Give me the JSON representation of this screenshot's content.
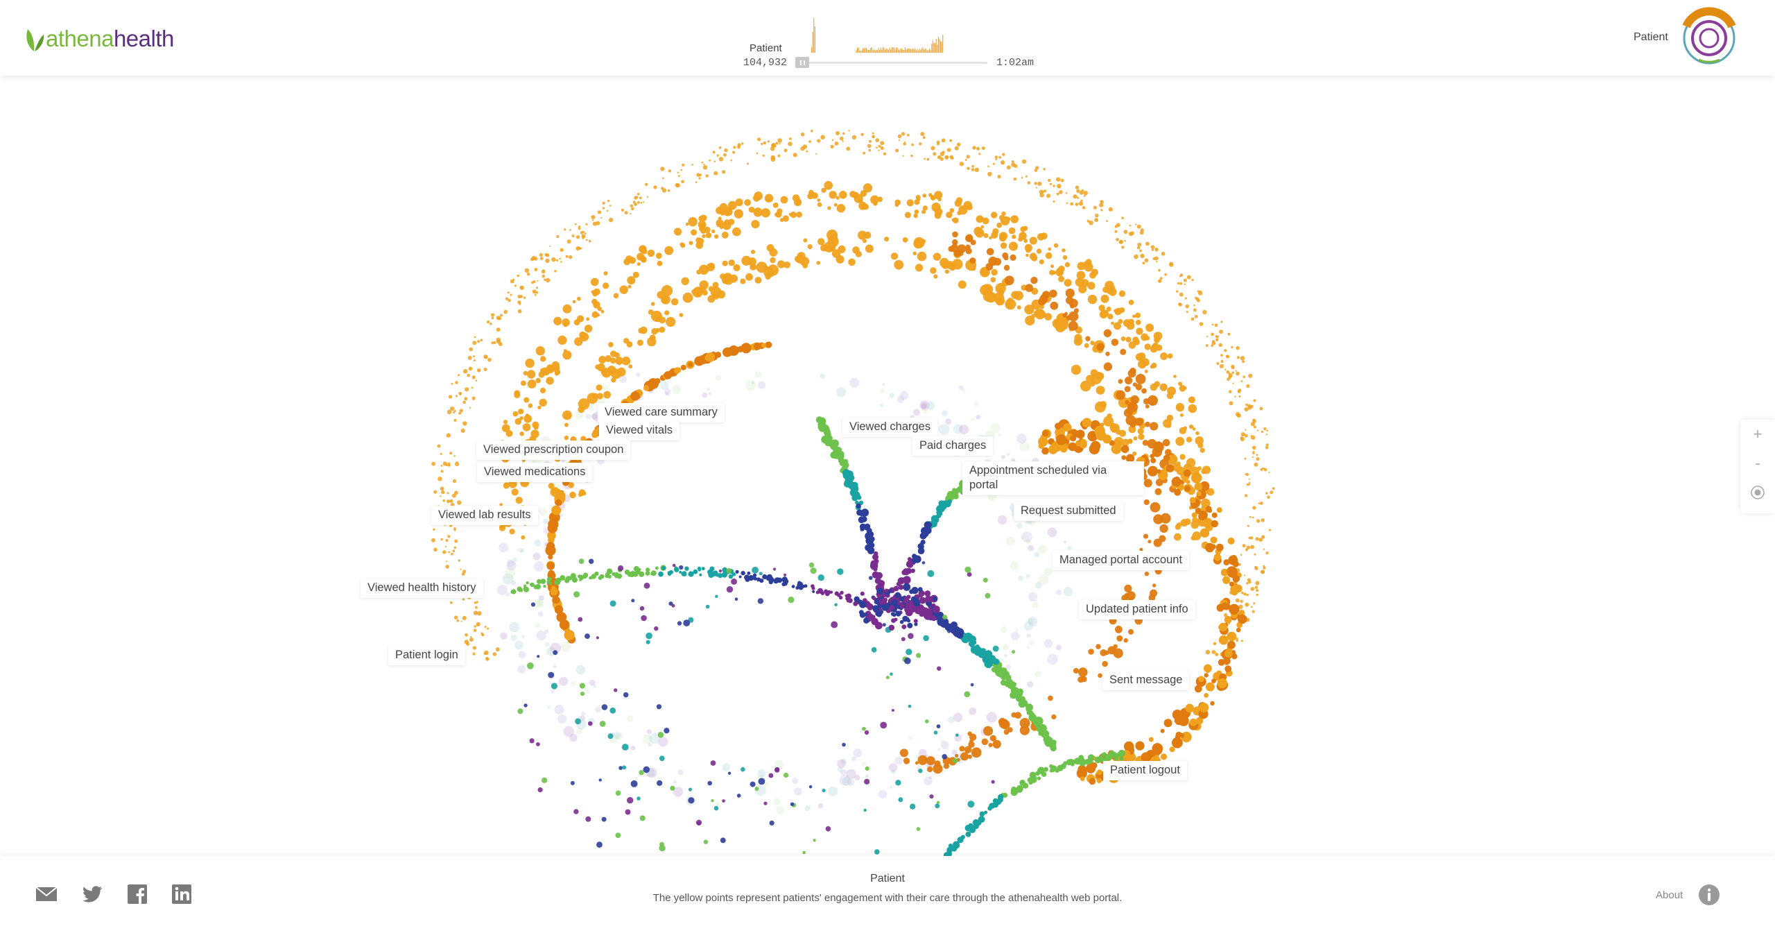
{
  "brand": {
    "logo_part1": "athena",
    "logo_part2": "health"
  },
  "timeline": {
    "label": "Patient",
    "count": "104,932",
    "time": "1:02am",
    "state": "paused"
  },
  "header": {
    "mode_label": "Patient"
  },
  "annotations": {
    "viewed_care_summary": "Viewed care summary",
    "viewed_vitals": "Viewed vitals",
    "viewed_prescription_coupon": "Viewed prescription coupon",
    "viewed_medications": "Viewed medications",
    "viewed_lab_results": "Viewed lab results",
    "viewed_health_history": "Viewed health history",
    "patient_login": "Patient login",
    "viewed_charges": "Viewed charges",
    "paid_charges": "Paid charges",
    "appointment_scheduled": "Appointment scheduled via portal",
    "request_submitted": "Request submitted",
    "managed_portal_account": "Managed portal account",
    "updated_patient_info": "Updated patient info",
    "sent_message": "Sent message",
    "patient_logout": "Patient logout"
  },
  "zoom": {
    "zoom_in": "+",
    "zoom_out": "-"
  },
  "footer": {
    "title": "Patient",
    "description": "The yellow points represent patients' engagement with their care through the athenahealth web portal.",
    "about_label": "About"
  },
  "icons": {
    "email": "email-icon",
    "twitter": "twitter-icon",
    "facebook": "facebook-icon",
    "linkedin": "linkedin-icon",
    "info": "info-icon",
    "recenter": "target-icon"
  },
  "colors": {
    "yellow_points": "#f0a21f",
    "orange_points": "#e07b10",
    "green_points": "#6cc24a",
    "teal_points": "#1aa3a3",
    "blue_points": "#2d3e9a",
    "purple_points": "#7a2d8f",
    "brand_green": "#7ab83d",
    "brand_purple": "#5b2d7e"
  }
}
